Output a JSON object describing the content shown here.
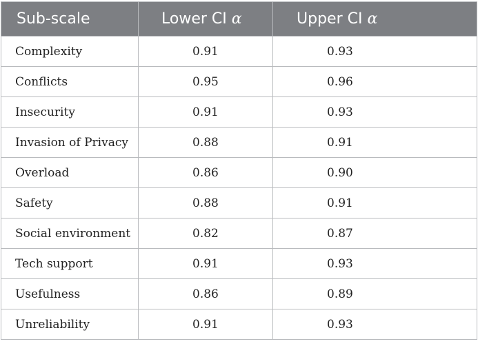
{
  "table": {
    "headers": {
      "subscale": "Sub-scale",
      "lower_text": "Lower CI ",
      "upper_text": "Upper CI ",
      "alpha": "α"
    },
    "rows": [
      {
        "name": "Complexity",
        "lower": "0.91",
        "upper": "0.93"
      },
      {
        "name": "Conflicts",
        "lower": "0.95",
        "upper": "0.96"
      },
      {
        "name": "Insecurity",
        "lower": "0.91",
        "upper": "0.93"
      },
      {
        "name": "Invasion of Privacy",
        "lower": "0.88",
        "upper": "0.91"
      },
      {
        "name": "Overload",
        "lower": "0.86",
        "upper": "0.90"
      },
      {
        "name": "Safety",
        "lower": "0.88",
        "upper": "0.91"
      },
      {
        "name": "Social environment",
        "lower": "0.82",
        "upper": "0.87"
      },
      {
        "name": "Tech support",
        "lower": "0.91",
        "upper": "0.93"
      },
      {
        "name": "Usefulness",
        "lower": "0.86",
        "upper": "0.89"
      },
      {
        "name": "Unreliability",
        "lower": "0.91",
        "upper": "0.93"
      }
    ]
  }
}
